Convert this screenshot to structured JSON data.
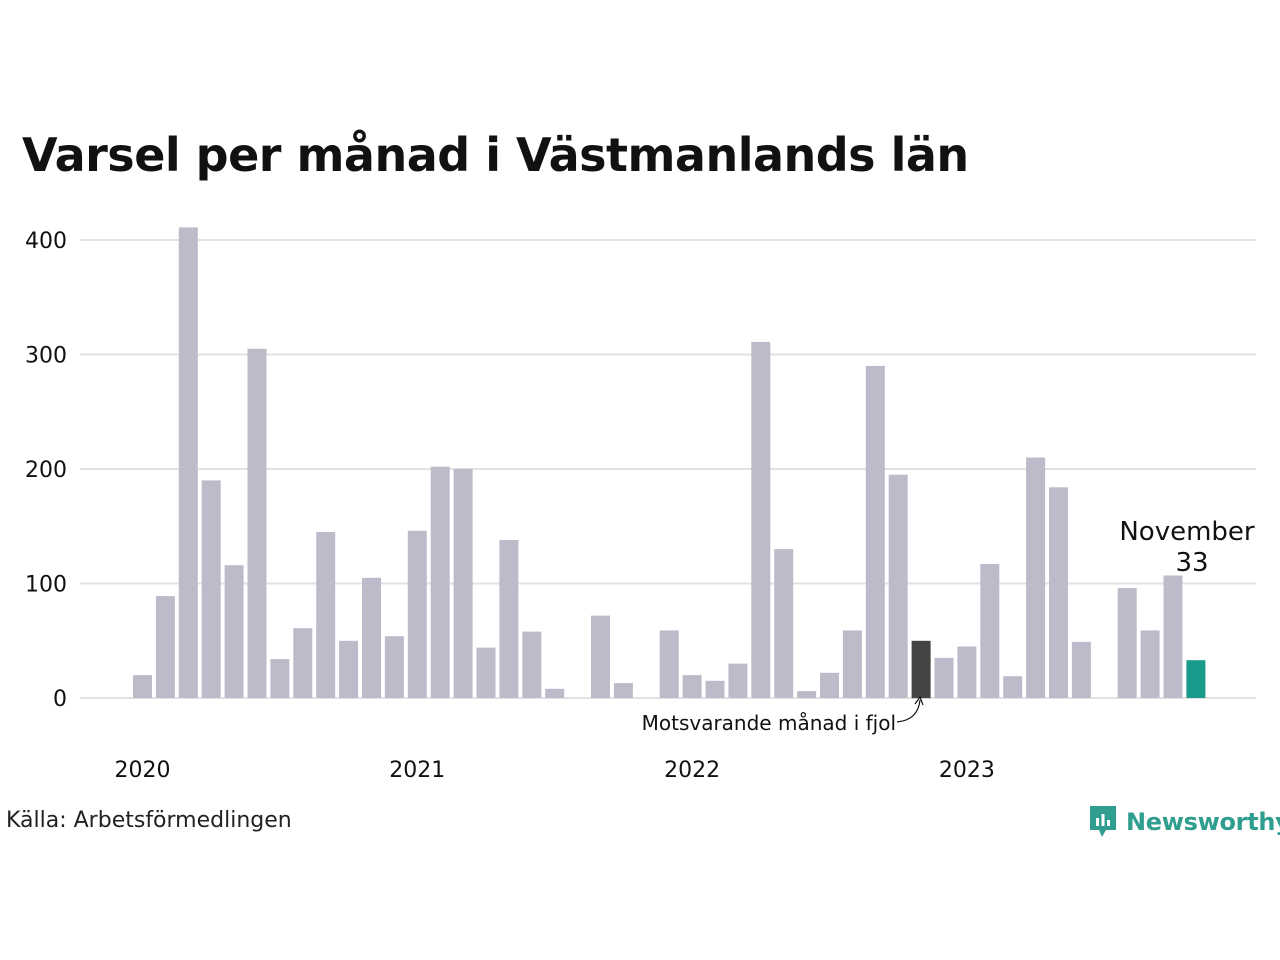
{
  "title": "Varsel per månad i Västmanlands län",
  "source": "Källa: Arbetsförmedlingen",
  "brand": {
    "name": "Newsworthy",
    "icon": "newsworthy-logo-icon",
    "color": "#2f9e8f"
  },
  "annotation": {
    "text": "Motsvarande månad i fjol"
  },
  "callout": {
    "label": "November",
    "value": "33"
  },
  "colors": {
    "bar": "#bdbbca",
    "highlight_prev_year": "#444444",
    "highlight_current": "#1a9a8a",
    "grid": "#e2e2e2"
  },
  "chart_data": {
    "type": "bar",
    "title": "Varsel per månad i Västmanlands län",
    "xlabel": "",
    "ylabel": "",
    "ylim": [
      0,
      420
    ],
    "yticks": [
      0,
      100,
      200,
      300,
      400
    ],
    "x_tick_labels": [
      "2020",
      "2021",
      "2022",
      "2023"
    ],
    "grid": true,
    "categories": [
      "2020-01",
      "2020-02",
      "2020-03",
      "2020-04",
      "2020-05",
      "2020-06",
      "2020-07",
      "2020-08",
      "2020-09",
      "2020-10",
      "2020-11",
      "2020-12",
      "2021-01",
      "2021-02",
      "2021-03",
      "2021-04",
      "2021-05",
      "2021-06",
      "2021-07",
      "2021-08",
      "2021-09",
      "2021-10",
      "2021-11",
      "2021-12",
      "2022-01",
      "2022-02",
      "2022-03",
      "2022-04",
      "2022-05",
      "2022-06",
      "2022-07",
      "2022-08",
      "2022-09",
      "2022-10",
      "2022-11",
      "2022-12",
      "2023-01",
      "2023-02",
      "2023-03",
      "2023-04",
      "2023-05",
      "2023-06",
      "2023-07",
      "2023-08",
      "2023-09",
      "2023-10",
      "2023-11"
    ],
    "values": [
      20,
      89,
      411,
      190,
      116,
      305,
      34,
      61,
      145,
      50,
      105,
      54,
      146,
      202,
      200,
      44,
      138,
      58,
      8,
      0,
      72,
      13,
      0,
      59,
      20,
      15,
      30,
      311,
      130,
      6,
      22,
      59,
      290,
      195,
      50,
      35,
      45,
      117,
      19,
      210,
      184,
      49,
      0,
      96,
      59,
      107,
      33
    ],
    "highlight": {
      "2021-11": "previous_year",
      "2022-11": "previous_year",
      "2023-11": "current"
    }
  }
}
